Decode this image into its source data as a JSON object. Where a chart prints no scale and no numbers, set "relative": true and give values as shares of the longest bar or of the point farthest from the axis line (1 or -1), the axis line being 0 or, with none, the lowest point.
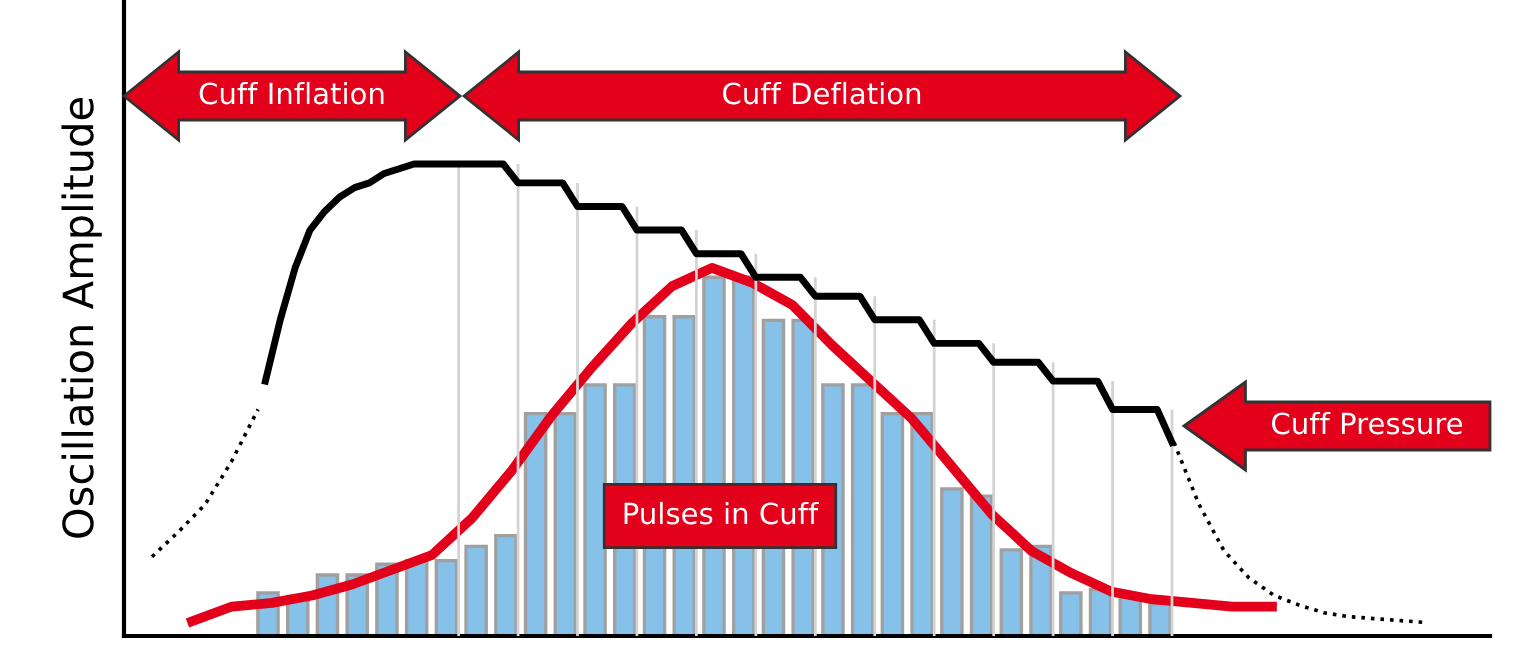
{
  "chart_data": [
    {
      "type": "bar",
      "relative": true,
      "ylabel": "Oscillation Amplitude",
      "color": "#85c1e9",
      "categories": [
        null,
        null,
        null,
        null,
        null,
        null,
        null,
        null,
        null,
        null,
        null,
        null,
        null,
        null,
        null,
        null,
        null,
        null,
        null,
        null,
        null,
        null,
        null,
        null,
        null,
        null,
        null,
        null,
        null,
        null,
        null
      ],
      "values": [
        0.12,
        0.11,
        0.17,
        0.17,
        0.2,
        0.21,
        0.21,
        0.25,
        0.28,
        0.62,
        0.62,
        0.7,
        0.7,
        0.89,
        0.89,
        1.0,
        1.0,
        0.88,
        0.88,
        0.7,
        0.7,
        0.62,
        0.62,
        0.41,
        0.39,
        0.24,
        0.25,
        0.12,
        0.13,
        0.11,
        0.09
      ],
      "annotations": [
        "Cuff Inflation",
        "Cuff Deflation",
        "Cuff Pressure",
        "Pulses in Cuff"
      ]
    },
    {
      "type": "line",
      "relative": true,
      "color": "#e2001a",
      "categories": [
        null,
        null,
        null,
        null,
        null,
        null,
        null,
        null,
        null,
        null,
        null,
        null,
        null,
        null,
        null,
        null,
        null,
        null,
        null,
        null,
        null,
        null,
        null,
        null,
        null,
        null,
        null,
        null
      ],
      "values": [
        0.04,
        0.08,
        0.09,
        0.11,
        0.14,
        0.18,
        0.22,
        0.32,
        0.45,
        0.6,
        0.73,
        0.85,
        0.95,
        1.0,
        0.96,
        0.9,
        0.79,
        0.69,
        0.59,
        0.46,
        0.33,
        0.23,
        0.17,
        0.12,
        0.1,
        0.09,
        0.08,
        0.08
      ]
    },
    {
      "type": "line",
      "relative": true,
      "color": "#000000",
      "line_style": "solid",
      "categories": [
        null,
        null,
        null,
        null,
        null,
        null,
        null,
        null,
        null,
        null,
        null,
        null,
        null,
        null,
        null,
        null,
        null,
        null,
        null,
        null,
        null,
        null,
        null,
        null,
        null,
        null,
        null,
        null,
        null,
        null,
        null,
        null,
        null,
        null,
        null,
        null,
        null,
        null,
        null,
        null,
        null,
        null,
        null,
        null,
        null,
        null,
        null,
        null,
        null,
        null,
        null,
        null,
        null,
        null,
        null,
        null,
        null,
        null,
        null,
        null,
        null,
        null
      ],
      "values": [
        0.54,
        0.67,
        0.78,
        0.86,
        0.9,
        0.93,
        0.95,
        0.96,
        0.98,
        0.99,
        1.0,
        1.0,
        1.0,
        1.0,
        1.0,
        1.0,
        1.0,
        0.96,
        0.96,
        0.96,
        0.96,
        0.91,
        0.91,
        0.91,
        0.91,
        0.86,
        0.86,
        0.86,
        0.86,
        0.81,
        0.81,
        0.81,
        0.81,
        0.76,
        0.76,
        0.76,
        0.76,
        0.72,
        0.72,
        0.72,
        0.72,
        0.67,
        0.67,
        0.67,
        0.67,
        0.62,
        0.62,
        0.62,
        0.62,
        0.58,
        0.58,
        0.58,
        0.58,
        0.54,
        0.54,
        0.54,
        0.54,
        0.48,
        0.48,
        0.48,
        0.48,
        0.41
      ]
    },
    {
      "type": "line",
      "relative": true,
      "color": "#000000",
      "line_style": "dotted",
      "categories": [
        null,
        null,
        null,
        null,
        null
      ],
      "values": [
        0.35,
        0.46,
        0.58,
        0.77,
        1.0
      ]
    },
    {
      "type": "line",
      "relative": true,
      "color": "#000000",
      "line_style": "dotted",
      "categories": [
        null,
        null,
        null,
        null,
        null,
        null,
        null,
        null,
        null,
        null,
        null
      ],
      "values": [
        1.0,
        0.68,
        0.44,
        0.3,
        0.21,
        0.16,
        0.12,
        0.1,
        0.09,
        0.08,
        0.07
      ]
    }
  ]
}
